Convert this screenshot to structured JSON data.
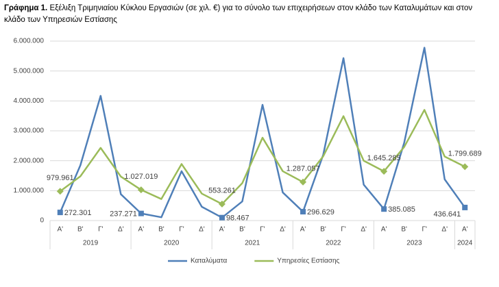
{
  "chart_data": {
    "type": "line",
    "title_label": "Γράφημα 1.",
    "title": "Εξέλιξη Τριμηνιαίου Κύκλου Εργασιών (σε χιλ. €) για το σύνολο των επιχειρήσεων στον κλάδο των Καταλυμάτων και στον κλάδο των Υπηρεσιών Εστίασης",
    "categories": [
      "Α'",
      "Β'",
      "Γ'",
      "Δ'",
      "Α'",
      "Β'",
      "Γ'",
      "Δ'",
      "Α'",
      "Β'",
      "Γ'",
      "Δ'",
      "Α'",
      "Β'",
      "Γ'",
      "Δ'",
      "Α'",
      "Β'",
      "Γ'",
      "Δ'",
      "Α'"
    ],
    "groups": [
      {
        "name": "2019",
        "count": 4
      },
      {
        "name": "2020",
        "count": 4
      },
      {
        "name": "2021",
        "count": 4
      },
      {
        "name": "2022",
        "count": 4
      },
      {
        "name": "2023",
        "count": 4
      },
      {
        "name": "2024",
        "count": 1
      }
    ],
    "series": [
      {
        "name": "Καταλύματα",
        "color": "#4f7fb8",
        "marker": "square",
        "values": [
          272301,
          1850000,
          4170000,
          880000,
          237271,
          110000,
          1650000,
          460000,
          98467,
          640000,
          3870000,
          940000,
          296629,
          2200000,
          5430000,
          1200000,
          385085,
          2600000,
          5780000,
          1380000,
          436641
        ],
        "value_labels": [
          "272.301",
          null,
          null,
          null,
          "237.271",
          null,
          null,
          null,
          "98.467",
          null,
          null,
          null,
          "296.629",
          null,
          null,
          null,
          "385.085",
          null,
          null,
          null,
          "436.641"
        ]
      },
      {
        "name": "Υπηρεσίες Εστίασης",
        "color": "#9bbb59",
        "marker": "diamond",
        "values": [
          979961,
          1480000,
          2430000,
          1470000,
          1027019,
          720000,
          1890000,
          900000,
          553261,
          1250000,
          2770000,
          1650000,
          1287057,
          2150000,
          3490000,
          2000000,
          1645285,
          2460000,
          3700000,
          2140000,
          1799689
        ],
        "value_labels": [
          "979.961",
          null,
          null,
          null,
          "1.027.019",
          null,
          null,
          null,
          "553.261",
          null,
          null,
          null,
          "1.287.057",
          null,
          null,
          null,
          "1.645.285",
          null,
          null,
          null,
          "1.799.689"
        ]
      }
    ],
    "ylim": [
      0,
      6000000
    ],
    "yticks": [
      0,
      {
        "value": 1000000,
        "label": "1.000.000"
      },
      {
        "value": 2000000,
        "label": "2.000.000"
      },
      {
        "value": 3000000,
        "label": "3.000.000"
      },
      {
        "value": 4000000,
        "label": "4.000.000"
      },
      {
        "value": 5000000,
        "label": "5.000.000"
      },
      {
        "value": 6000000,
        "label": "6.000.000"
      }
    ],
    "grid": true,
    "legend": "bottom"
  }
}
